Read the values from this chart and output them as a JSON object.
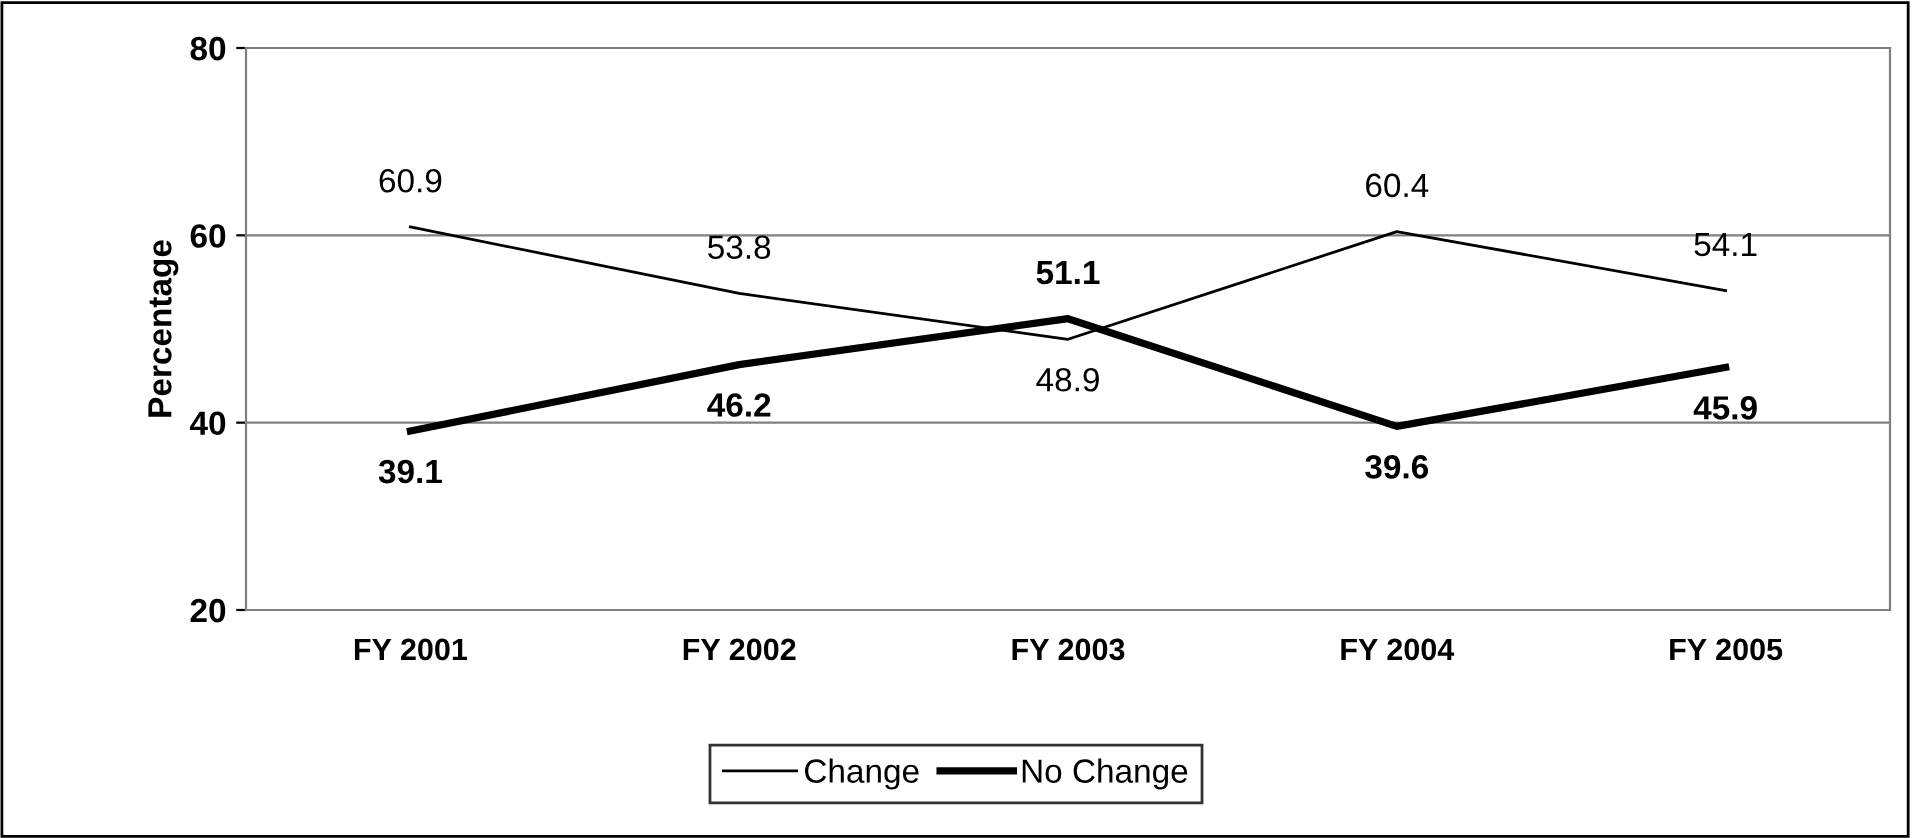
{
  "chart_data": {
    "type": "line",
    "ylabel": "Percentage",
    "categories": [
      "FY 2001",
      "FY 2002",
      "FY 2003",
      "FY 2004",
      "FY 2005"
    ],
    "series": [
      {
        "name": "Change",
        "color": "#000000",
        "values": [
          60.9,
          53.8,
          48.9,
          60.4,
          54.1
        ]
      },
      {
        "name": "No Change",
        "color": "#000000",
        "values": [
          39.1,
          46.2,
          51.1,
          39.6,
          45.9
        ]
      }
    ],
    "ylim": [
      20,
      80
    ],
    "yticks": [
      20,
      40,
      60,
      80
    ],
    "grid": "y",
    "legend": "bottom",
    "data_labels": true,
    "marker": "none",
    "line_style": "solid"
  }
}
